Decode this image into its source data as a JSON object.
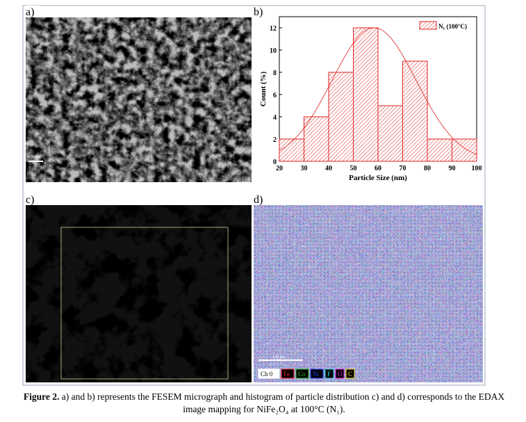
{
  "panel_labels": [
    "a)",
    "b)",
    "c)",
    "d)"
  ],
  "scale_bars": {
    "a": "100 nm",
    "d": "100 μm"
  },
  "edax_legend": [
    {
      "label": "Ch 0",
      "color": "#ffffff"
    },
    {
      "label": "Fe",
      "color": "#ff2020"
    },
    {
      "label": "Co",
      "color": "#20c020"
    },
    {
      "label": "Ni",
      "color": "#2040ff"
    },
    {
      "label": "F",
      "color": "#20d0e0"
    },
    {
      "label": "O",
      "color": "#e020e0"
    },
    {
      "label": "C",
      "color": "#f0e020"
    }
  ],
  "chart_data": {
    "type": "histogram",
    "bins": [
      20,
      30,
      40,
      50,
      60,
      70,
      80,
      90,
      100
    ],
    "values": [
      2,
      4,
      8,
      12,
      5,
      9,
      2,
      2
    ],
    "color": "#e02020",
    "series_name": "N₁ (100°C)",
    "xlabel": "Particle Size (nm)",
    "ylabel": "Count (%)",
    "xlim": [
      20,
      100
    ],
    "xticks": [
      20,
      30,
      40,
      50,
      60,
      70,
      80,
      90,
      100
    ],
    "ylim": [
      0,
      13
    ],
    "yticks": [
      0,
      2,
      4,
      6,
      8,
      10,
      12
    ],
    "legend": "upper right"
  },
  "caption": {
    "label": "Figure 2.",
    "text": "a) and b) represents the FESEM micrograph and histogram of particle distribution c) and d) corresponds to the EDAX image mapping for NiFe₂O₄ at 100°C (N₁)."
  }
}
